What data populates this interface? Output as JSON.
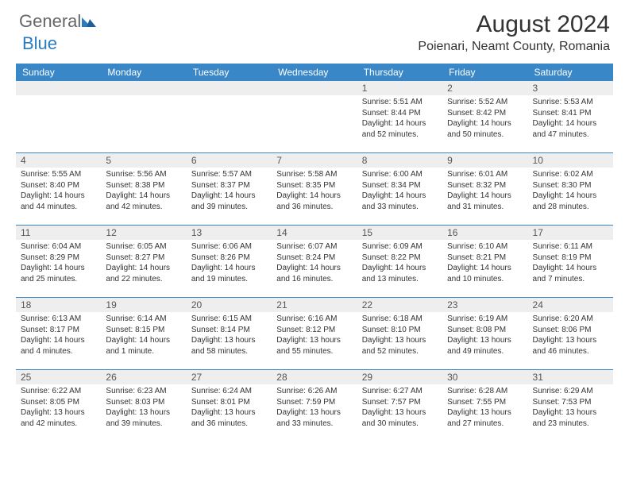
{
  "brand": {
    "word1": "General",
    "word2": "Blue",
    "tri_color": "#2b7bbf"
  },
  "title": "August 2024",
  "location": "Poienari, Neamt County, Romania",
  "colors": {
    "header_bg": "#3a87c8",
    "header_text": "#ffffff",
    "daynum_bg": "#eeeeee",
    "row_divider": "#3a87c8",
    "body_text": "#333333"
  },
  "dayNames": [
    "Sunday",
    "Monday",
    "Tuesday",
    "Wednesday",
    "Thursday",
    "Friday",
    "Saturday"
  ],
  "weeks": [
    [
      null,
      null,
      null,
      null,
      {
        "n": "1",
        "sr": "Sunrise: 5:51 AM",
        "ss": "Sunset: 8:44 PM",
        "d1": "Daylight: 14 hours",
        "d2": "and 52 minutes."
      },
      {
        "n": "2",
        "sr": "Sunrise: 5:52 AM",
        "ss": "Sunset: 8:42 PM",
        "d1": "Daylight: 14 hours",
        "d2": "and 50 minutes."
      },
      {
        "n": "3",
        "sr": "Sunrise: 5:53 AM",
        "ss": "Sunset: 8:41 PM",
        "d1": "Daylight: 14 hours",
        "d2": "and 47 minutes."
      }
    ],
    [
      {
        "n": "4",
        "sr": "Sunrise: 5:55 AM",
        "ss": "Sunset: 8:40 PM",
        "d1": "Daylight: 14 hours",
        "d2": "and 44 minutes."
      },
      {
        "n": "5",
        "sr": "Sunrise: 5:56 AM",
        "ss": "Sunset: 8:38 PM",
        "d1": "Daylight: 14 hours",
        "d2": "and 42 minutes."
      },
      {
        "n": "6",
        "sr": "Sunrise: 5:57 AM",
        "ss": "Sunset: 8:37 PM",
        "d1": "Daylight: 14 hours",
        "d2": "and 39 minutes."
      },
      {
        "n": "7",
        "sr": "Sunrise: 5:58 AM",
        "ss": "Sunset: 8:35 PM",
        "d1": "Daylight: 14 hours",
        "d2": "and 36 minutes."
      },
      {
        "n": "8",
        "sr": "Sunrise: 6:00 AM",
        "ss": "Sunset: 8:34 PM",
        "d1": "Daylight: 14 hours",
        "d2": "and 33 minutes."
      },
      {
        "n": "9",
        "sr": "Sunrise: 6:01 AM",
        "ss": "Sunset: 8:32 PM",
        "d1": "Daylight: 14 hours",
        "d2": "and 31 minutes."
      },
      {
        "n": "10",
        "sr": "Sunrise: 6:02 AM",
        "ss": "Sunset: 8:30 PM",
        "d1": "Daylight: 14 hours",
        "d2": "and 28 minutes."
      }
    ],
    [
      {
        "n": "11",
        "sr": "Sunrise: 6:04 AM",
        "ss": "Sunset: 8:29 PM",
        "d1": "Daylight: 14 hours",
        "d2": "and 25 minutes."
      },
      {
        "n": "12",
        "sr": "Sunrise: 6:05 AM",
        "ss": "Sunset: 8:27 PM",
        "d1": "Daylight: 14 hours",
        "d2": "and 22 minutes."
      },
      {
        "n": "13",
        "sr": "Sunrise: 6:06 AM",
        "ss": "Sunset: 8:26 PM",
        "d1": "Daylight: 14 hours",
        "d2": "and 19 minutes."
      },
      {
        "n": "14",
        "sr": "Sunrise: 6:07 AM",
        "ss": "Sunset: 8:24 PM",
        "d1": "Daylight: 14 hours",
        "d2": "and 16 minutes."
      },
      {
        "n": "15",
        "sr": "Sunrise: 6:09 AM",
        "ss": "Sunset: 8:22 PM",
        "d1": "Daylight: 14 hours",
        "d2": "and 13 minutes."
      },
      {
        "n": "16",
        "sr": "Sunrise: 6:10 AM",
        "ss": "Sunset: 8:21 PM",
        "d1": "Daylight: 14 hours",
        "d2": "and 10 minutes."
      },
      {
        "n": "17",
        "sr": "Sunrise: 6:11 AM",
        "ss": "Sunset: 8:19 PM",
        "d1": "Daylight: 14 hours",
        "d2": "and 7 minutes."
      }
    ],
    [
      {
        "n": "18",
        "sr": "Sunrise: 6:13 AM",
        "ss": "Sunset: 8:17 PM",
        "d1": "Daylight: 14 hours",
        "d2": "and 4 minutes."
      },
      {
        "n": "19",
        "sr": "Sunrise: 6:14 AM",
        "ss": "Sunset: 8:15 PM",
        "d1": "Daylight: 14 hours",
        "d2": "and 1 minute."
      },
      {
        "n": "20",
        "sr": "Sunrise: 6:15 AM",
        "ss": "Sunset: 8:14 PM",
        "d1": "Daylight: 13 hours",
        "d2": "and 58 minutes."
      },
      {
        "n": "21",
        "sr": "Sunrise: 6:16 AM",
        "ss": "Sunset: 8:12 PM",
        "d1": "Daylight: 13 hours",
        "d2": "and 55 minutes."
      },
      {
        "n": "22",
        "sr": "Sunrise: 6:18 AM",
        "ss": "Sunset: 8:10 PM",
        "d1": "Daylight: 13 hours",
        "d2": "and 52 minutes."
      },
      {
        "n": "23",
        "sr": "Sunrise: 6:19 AM",
        "ss": "Sunset: 8:08 PM",
        "d1": "Daylight: 13 hours",
        "d2": "and 49 minutes."
      },
      {
        "n": "24",
        "sr": "Sunrise: 6:20 AM",
        "ss": "Sunset: 8:06 PM",
        "d1": "Daylight: 13 hours",
        "d2": "and 46 minutes."
      }
    ],
    [
      {
        "n": "25",
        "sr": "Sunrise: 6:22 AM",
        "ss": "Sunset: 8:05 PM",
        "d1": "Daylight: 13 hours",
        "d2": "and 42 minutes."
      },
      {
        "n": "26",
        "sr": "Sunrise: 6:23 AM",
        "ss": "Sunset: 8:03 PM",
        "d1": "Daylight: 13 hours",
        "d2": "and 39 minutes."
      },
      {
        "n": "27",
        "sr": "Sunrise: 6:24 AM",
        "ss": "Sunset: 8:01 PM",
        "d1": "Daylight: 13 hours",
        "d2": "and 36 minutes."
      },
      {
        "n": "28",
        "sr": "Sunrise: 6:26 AM",
        "ss": "Sunset: 7:59 PM",
        "d1": "Daylight: 13 hours",
        "d2": "and 33 minutes."
      },
      {
        "n": "29",
        "sr": "Sunrise: 6:27 AM",
        "ss": "Sunset: 7:57 PM",
        "d1": "Daylight: 13 hours",
        "d2": "and 30 minutes."
      },
      {
        "n": "30",
        "sr": "Sunrise: 6:28 AM",
        "ss": "Sunset: 7:55 PM",
        "d1": "Daylight: 13 hours",
        "d2": "and 27 minutes."
      },
      {
        "n": "31",
        "sr": "Sunrise: 6:29 AM",
        "ss": "Sunset: 7:53 PM",
        "d1": "Daylight: 13 hours",
        "d2": "and 23 minutes."
      }
    ]
  ]
}
